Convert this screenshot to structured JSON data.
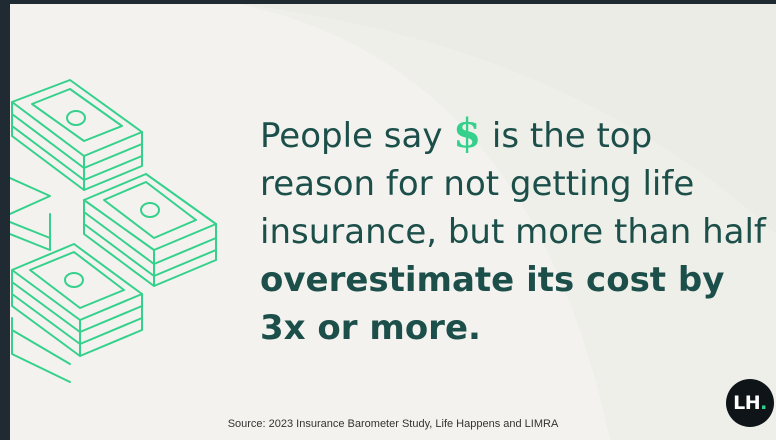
{
  "headline": {
    "part1": "People say ",
    "symbol": "$",
    "part2": " is the top reason for not getting life insurance, but more than half ",
    "emphasis": "overestimate its cost by 3x or more."
  },
  "source": "Source: 2023 Insurance Barometer Study, Life Happens and LIMRA",
  "logo": {
    "letters": "LH",
    "dot": "."
  },
  "colors": {
    "accent": "#35d18c",
    "text": "#1d4f4a",
    "card": "#f3f2ee",
    "frame": "#1f2a33"
  },
  "icons": {
    "illustration": "money-stack-icon"
  }
}
